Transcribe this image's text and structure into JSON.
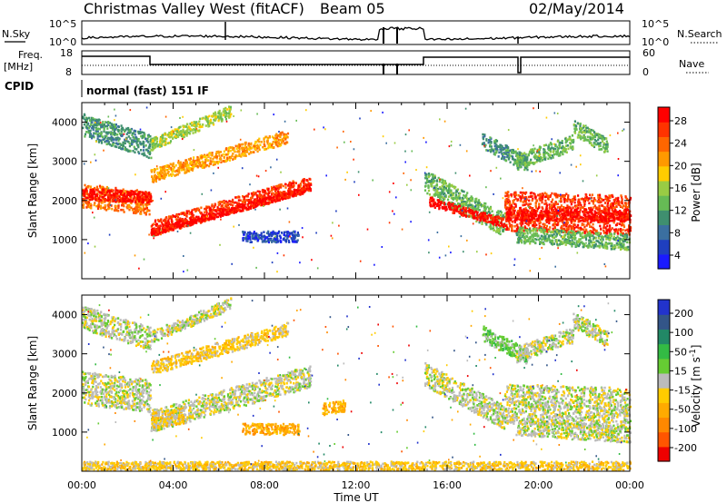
{
  "header": {
    "station": "Christmas Valley West (fitACF)",
    "beam": "Beam 05",
    "date": "02/May/2014"
  },
  "panels": {
    "nsky": {
      "label": "N.Sky",
      "left_ticks": [
        "10^5",
        "10^0"
      ],
      "right_ticks": [
        "10^5",
        "10^0"
      ],
      "right_label": "N.Search"
    },
    "freq": {
      "label_line1": "Freq.",
      "label_line2": "[MHz]",
      "left_ticks": [
        "18",
        "8"
      ],
      "right_ticks": [
        "60",
        "0"
      ],
      "right_label": "Nave"
    },
    "cpid": {
      "label": "CPID",
      "text": "normal (fast) 151 IF"
    }
  },
  "chart_data": [
    {
      "type": "heatmap",
      "name": "power",
      "xlabel": "Time UT",
      "ylabel": "Slant Range [km]",
      "x_range_hours": [
        0,
        24
      ],
      "y_range_km": [
        0,
        4500
      ],
      "y_ticks": [
        1000,
        2000,
        3000,
        4000
      ],
      "colorbar": {
        "label": "Power [dB]",
        "ticks": [
          "4",
          "8",
          "12",
          "16",
          "20",
          "24",
          "28"
        ],
        "colors": [
          "#1a1aff",
          "#1f3fbf",
          "#3b6fa0",
          "#3f8f6f",
          "#66bb55",
          "#99cc44",
          "#ffcc00",
          "#ff9900",
          "#ff6600",
          "#ff3300",
          "#ff0000"
        ]
      },
      "bands": [
        {
          "t0": 0.0,
          "t1": 3.0,
          "r0": 2150,
          "r1": 1950,
          "w": 300,
          "c": 8
        },
        {
          "t0": 0.0,
          "t1": 3.0,
          "r0": 2200,
          "r1": 2100,
          "w": 140,
          "c": 10
        },
        {
          "t0": 3.0,
          "t1": 10.0,
          "r0": 1300,
          "r1": 2450,
          "w": 200,
          "c": 9
        },
        {
          "t0": 3.0,
          "t1": 10.0,
          "r0": 1200,
          "r1": 2350,
          "w": 90,
          "c": 10
        },
        {
          "t0": 3.0,
          "t1": 9.0,
          "r0": 2650,
          "r1": 3650,
          "w": 170,
          "c": 7
        },
        {
          "t0": 0.0,
          "t1": 3.0,
          "r0": 3950,
          "r1": 3400,
          "w": 300,
          "c": 3
        },
        {
          "t0": 3.0,
          "t1": 6.5,
          "r0": 3450,
          "r1": 4300,
          "w": 150,
          "c": 5
        },
        {
          "t0": 7.0,
          "t1": 9.5,
          "r0": 1100,
          "r1": 1100,
          "w": 140,
          "c": 1
        },
        {
          "t0": 15.0,
          "t1": 18.5,
          "r0": 2500,
          "r1": 1400,
          "w": 300,
          "c": 4
        },
        {
          "t0": 15.2,
          "t1": 18.5,
          "r0": 2000,
          "r1": 1450,
          "w": 120,
          "c": 10
        },
        {
          "t0": 18.5,
          "t1": 24.0,
          "r0": 1750,
          "r1": 1650,
          "w": 500,
          "c": 9
        },
        {
          "t0": 18.5,
          "t1": 24.0,
          "r0": 1650,
          "r1": 1650,
          "w": 150,
          "c": 10
        },
        {
          "t0": 19.0,
          "t1": 24.0,
          "r0": 1150,
          "r1": 950,
          "w": 200,
          "c": 4
        },
        {
          "t0": 17.5,
          "t1": 19.5,
          "r0": 3550,
          "r1": 2950,
          "w": 200,
          "c": 3
        },
        {
          "t0": 19.0,
          "t1": 21.5,
          "r0": 3000,
          "r1": 3500,
          "w": 200,
          "c": 4
        },
        {
          "t0": 21.5,
          "t1": 23.0,
          "r0": 3900,
          "r1": 3400,
          "w": 200,
          "c": 4
        }
      ]
    },
    {
      "type": "heatmap",
      "name": "velocity",
      "xlabel": "Time UT",
      "ylabel": "Slant Range [km]",
      "x_ticks": [
        "00:00",
        "04:00",
        "08:00",
        "12:00",
        "16:00",
        "20:00",
        "00:00"
      ],
      "x_range_hours": [
        0,
        24
      ],
      "y_range_km": [
        0,
        4500
      ],
      "y_ticks": [
        1000,
        2000,
        3000,
        4000
      ],
      "colorbar": {
        "label": "Velocity [m s^-1]",
        "ticks": [
          "200",
          "100",
          "50",
          "15",
          "-15",
          "-50",
          "-100",
          "-200"
        ],
        "colors": [
          "#2233cc",
          "#335588",
          "#228866",
          "#33bb44",
          "#66cc33",
          "#bbbbbb",
          "#ffcc00",
          "#ffaa00",
          "#ff8800",
          "#ff5500",
          "#ee0000"
        ]
      },
      "bands": [
        {
          "t0": 0.0,
          "t1": 3.0,
          "r0": 2150,
          "r1": 1950,
          "w": 420,
          "c": 5
        },
        {
          "t0": 3.0,
          "t1": 10.0,
          "r0": 1300,
          "r1": 2450,
          "w": 280,
          "c": 5
        },
        {
          "t0": 3.0,
          "t1": 4.5,
          "r0": 1300,
          "r1": 1450,
          "w": 200,
          "c": 6
        },
        {
          "t0": 3.0,
          "t1": 9.0,
          "r0": 2650,
          "r1": 3650,
          "w": 170,
          "c": 6
        },
        {
          "t0": 0.0,
          "t1": 3.0,
          "r0": 3950,
          "r1": 3400,
          "w": 300,
          "c": 5
        },
        {
          "t0": 3.0,
          "t1": 6.5,
          "r0": 3450,
          "r1": 4300,
          "w": 150,
          "c": 5
        },
        {
          "t0": 7.0,
          "t1": 9.5,
          "r0": 1100,
          "r1": 1100,
          "w": 140,
          "c": 7
        },
        {
          "t0": 15.0,
          "t1": 18.5,
          "r0": 2500,
          "r1": 1400,
          "w": 300,
          "c": 5
        },
        {
          "t0": 18.5,
          "t1": 24.0,
          "r0": 1750,
          "r1": 1650,
          "w": 500,
          "c": 5
        },
        {
          "t0": 19.0,
          "t1": 24.0,
          "r0": 1150,
          "r1": 950,
          "w": 200,
          "c": 5
        },
        {
          "t0": 17.5,
          "t1": 19.5,
          "r0": 3550,
          "r1": 2950,
          "w": 200,
          "c": 4
        },
        {
          "t0": 19.0,
          "t1": 21.5,
          "r0": 3000,
          "r1": 3500,
          "w": 200,
          "c": 5
        },
        {
          "t0": 21.5,
          "t1": 23.0,
          "r0": 3900,
          "r1": 3400,
          "w": 200,
          "c": 5
        },
        {
          "t0": 10.5,
          "t1": 11.5,
          "r0": 1600,
          "r1": 1700,
          "w": 150,
          "c": 7
        },
        {
          "t0": 0.0,
          "t1": 24.0,
          "r0": 150,
          "r1": 150,
          "w": 120,
          "c": 6
        }
      ]
    }
  ]
}
